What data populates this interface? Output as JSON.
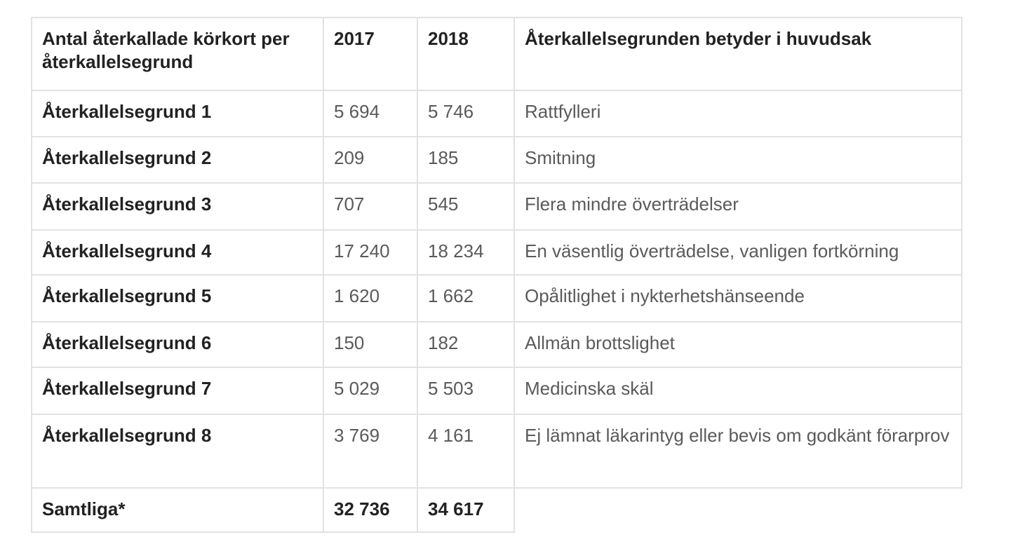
{
  "table": {
    "headers": {
      "category": "Antal återkallade körkort per återkallelsegrund",
      "year1": "2017",
      "year2": "2018",
      "meaning": "Återkallelsegrunden betyder i huvudsak"
    },
    "rows": [
      {
        "label": "Återkallelsegrund 1",
        "v2017": "5 694",
        "v2018": "5 746",
        "meaning": "Rattfylleri"
      },
      {
        "label": "Återkallelsegrund 2",
        "v2017": "209",
        "v2018": "185",
        "meaning": "Smitning"
      },
      {
        "label": "Återkallelsegrund 3",
        "v2017": "707",
        "v2018": "545",
        "meaning": "Flera mindre överträdelser"
      },
      {
        "label": "Återkallelsegrund 4",
        "v2017": "17 240",
        "v2018": "18 234",
        "meaning": "En väsentlig överträdelse, vanligen fortkörning"
      },
      {
        "label": "Återkallelsegrund 5",
        "v2017": "1 620",
        "v2018": "1 662",
        "meaning": "Opålitlighet i nykterhetshänseende"
      },
      {
        "label": "Återkallelsegrund 6",
        "v2017": "150",
        "v2018": "182",
        "meaning": "Allmän brottslighet"
      },
      {
        "label": "Återkallelsegrund 7",
        "v2017": "5 029",
        "v2018": "5 503",
        "meaning": "Medicinska skäl"
      },
      {
        "label": "Återkallelsegrund 8",
        "v2017": "3 769",
        "v2018": "4 161",
        "meaning": "Ej lämnat läkarintyg eller bevis om godkänt förarprov"
      }
    ],
    "total": {
      "label": "Samtliga*",
      "v2017": "32 736",
      "v2018": "34 617"
    }
  }
}
